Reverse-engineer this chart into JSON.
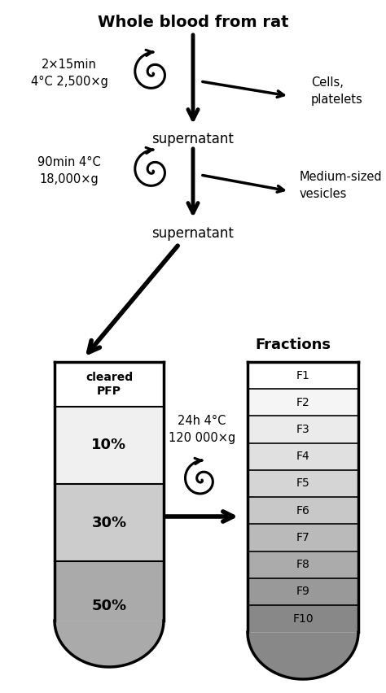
{
  "title": "Whole blood from rat",
  "step1_left": "2×15min\n4°C 2,500×g",
  "step1_right": "Cells,\nplatelets",
  "step1_label": "supernatant",
  "step2_left": "90min 4°C\n18,000×g",
  "step2_right": "Medium-sized\nvesicles",
  "step2_label": "supernatant",
  "tube_left_label_top": "cleared\nPFP",
  "tube_left_layers": [
    "10%",
    "30%",
    "50%"
  ],
  "tube_left_colors_top": "#ffffff",
  "tube_left_color_10": "#f0f0f0",
  "tube_left_color_30": "#cccccc",
  "tube_left_color_50": "#aaaaaa",
  "tube_right_label": "Fractions",
  "tube_right_fractions": [
    "F1",
    "F2",
    "F3",
    "F4",
    "F5",
    "F6",
    "F7",
    "F8",
    "F9",
    "F10"
  ],
  "fraction_colors": [
    "#ffffff",
    "#f5f5f5",
    "#ebebeb",
    "#e0e0e0",
    "#d5d5d5",
    "#c8c8c8",
    "#bababa",
    "#ababab",
    "#999999",
    "#888888"
  ],
  "centrifuge_label": "24h 4°C\n120 000×g",
  "bg_color": "#ffffff"
}
